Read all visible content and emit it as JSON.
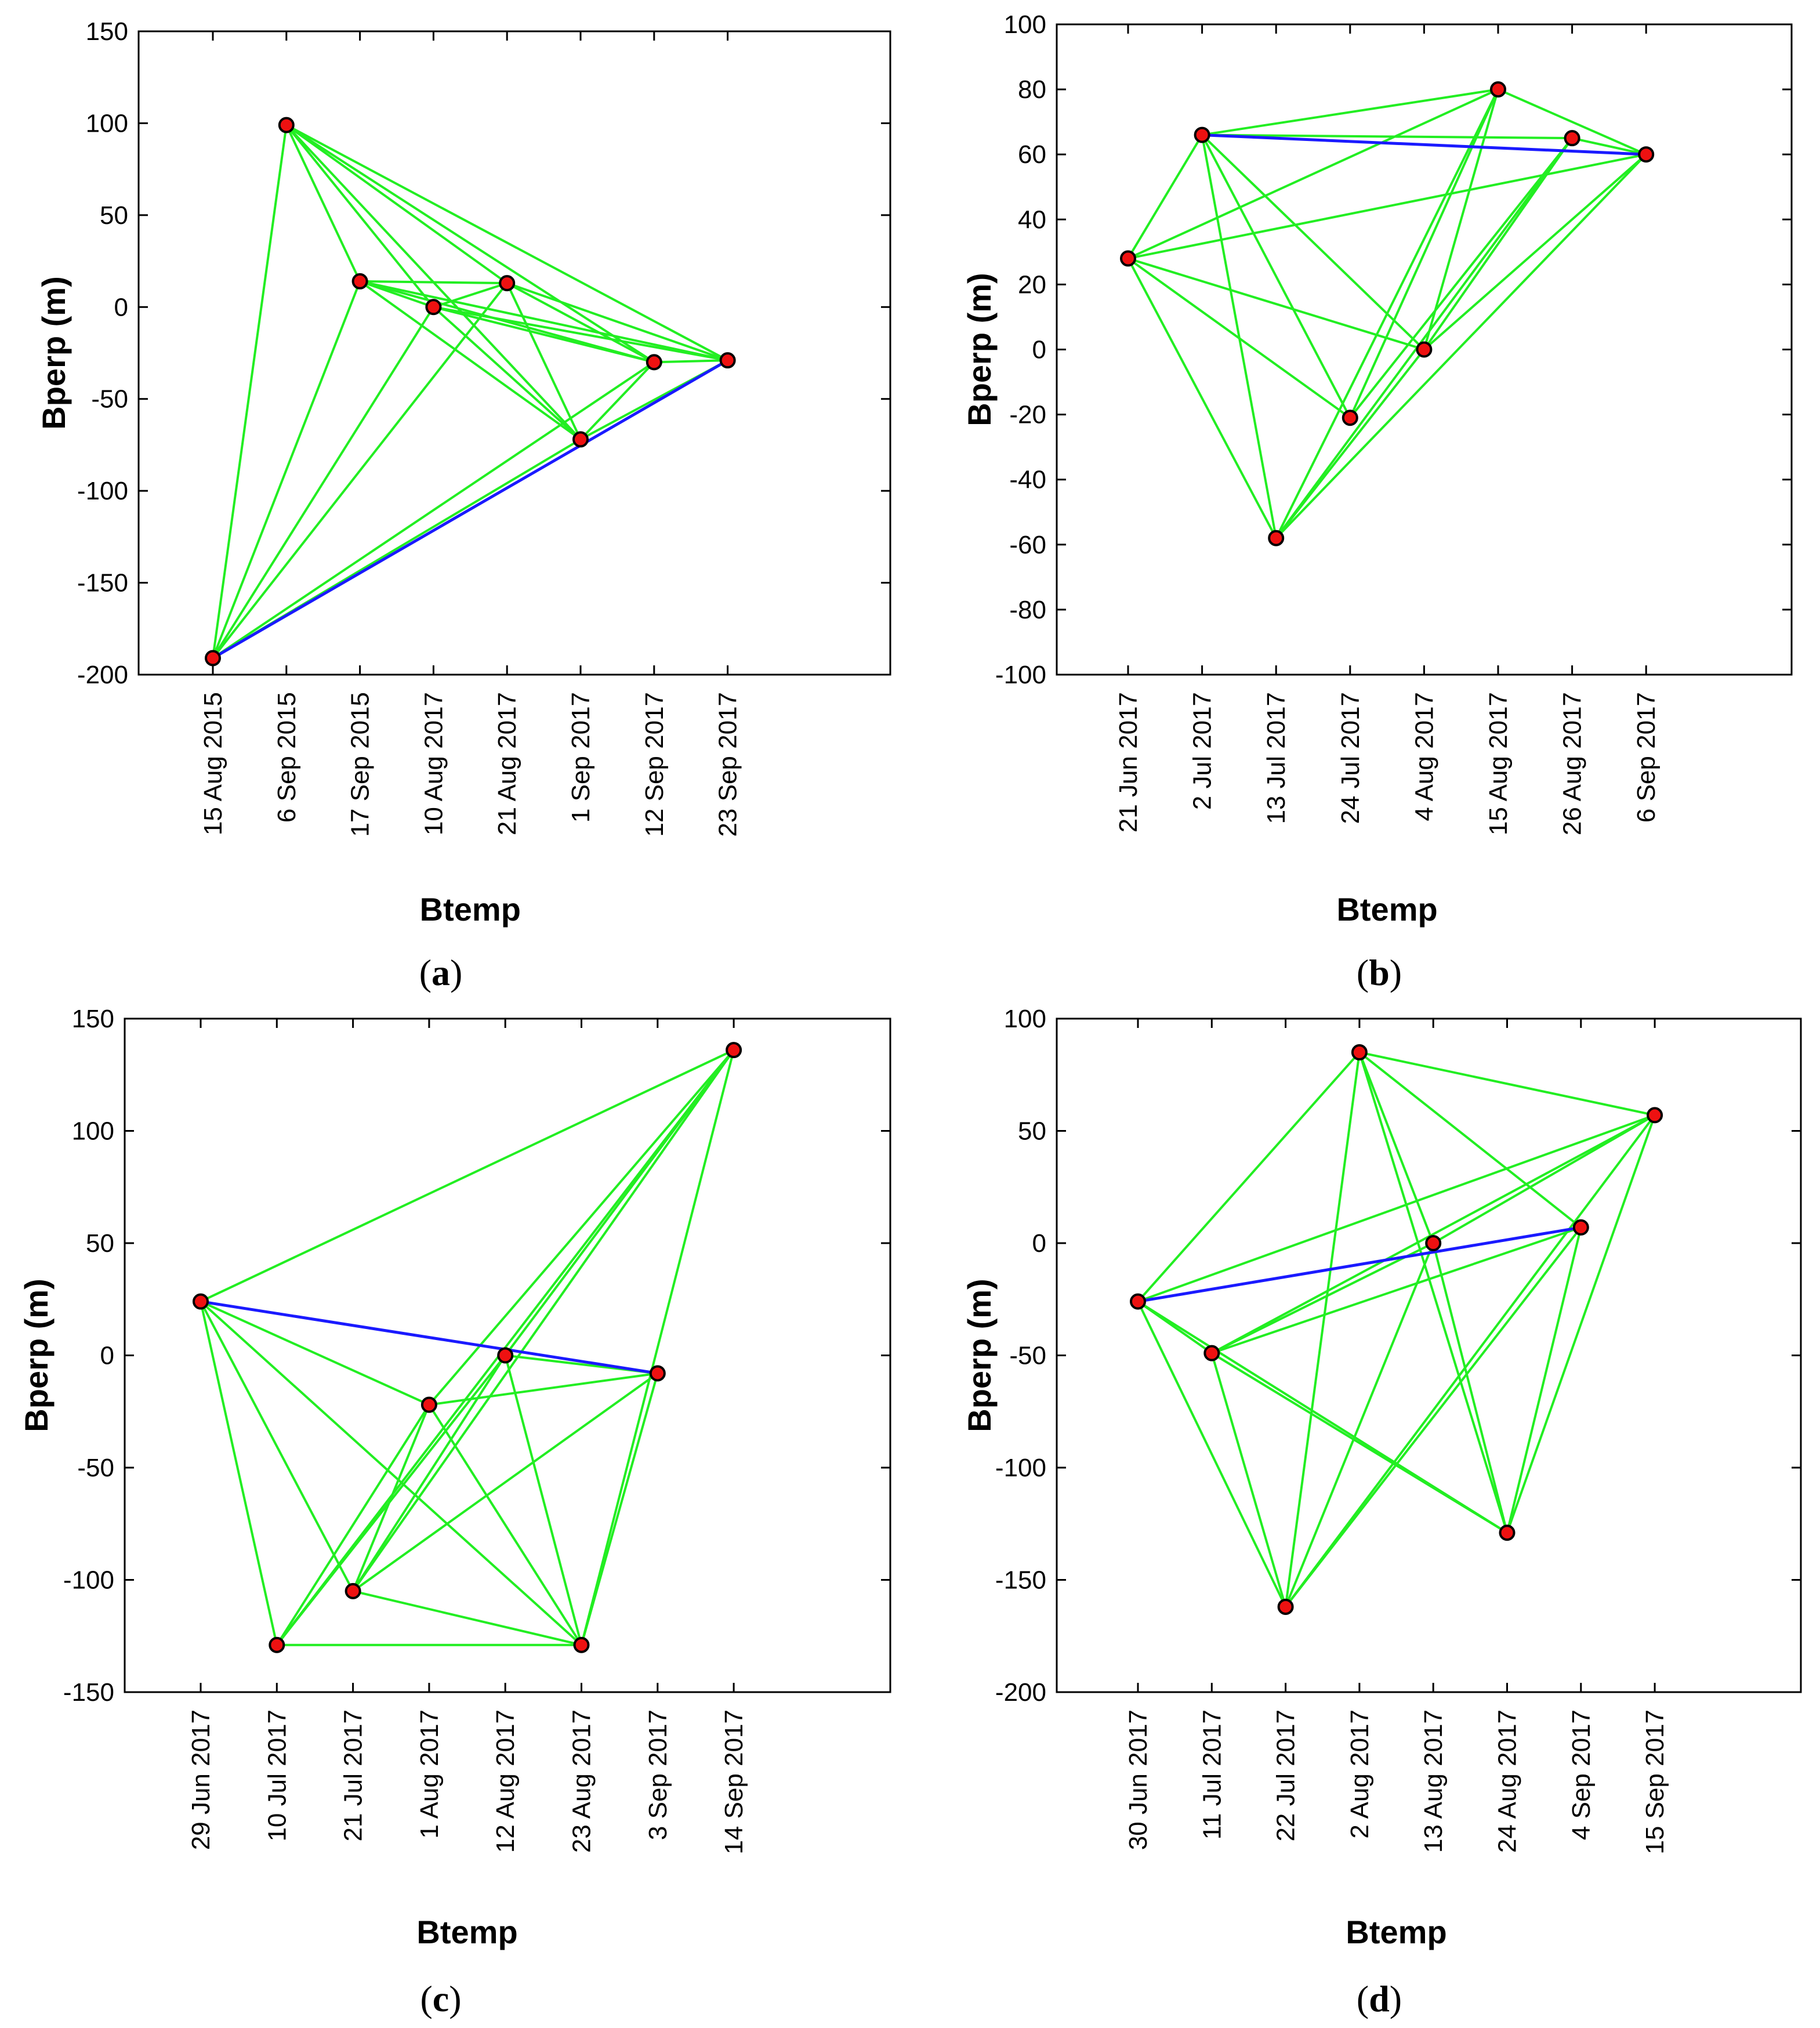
{
  "figure": {
    "panels": [
      {
        "id": "a",
        "label": "(a)",
        "label_letter": "a"
      },
      {
        "id": "b",
        "label": "(b)",
        "label_letter": "b"
      },
      {
        "id": "c",
        "label": "(c)",
        "label_letter": "c"
      },
      {
        "id": "d",
        "label": "(d)",
        "label_letter": "d"
      }
    ],
    "colors": {
      "edge": "#22ee22",
      "master_edge": "#1a1aff",
      "point_fill": "#ee1111",
      "point_stroke": "#000000",
      "axis": "#000000"
    }
  },
  "chart_data": [
    {
      "type": "scatter",
      "title": "",
      "xlabel": "Btemp",
      "ylabel": "Bperp (m)",
      "categories": [
        "15 Aug 2015",
        "6 Sep 2015",
        "17 Sep 2015",
        "10 Aug 2017",
        "21 Aug 2017",
        "1 Sep 2017",
        "12 Sep 2017",
        "23 Sep 2017"
      ],
      "values": [
        -191,
        99,
        14,
        0,
        13,
        -72,
        -30,
        -29
      ],
      "ylim": [
        -200,
        150
      ],
      "yticks": [
        -200,
        -150,
        -100,
        -50,
        0,
        50,
        100,
        150
      ],
      "connections": [
        [
          0,
          1
        ],
        [
          0,
          2
        ],
        [
          0,
          3
        ],
        [
          0,
          4
        ],
        [
          0,
          5
        ],
        [
          0,
          6
        ],
        [
          0,
          7
        ],
        [
          1,
          2
        ],
        [
          1,
          3
        ],
        [
          1,
          4
        ],
        [
          1,
          5
        ],
        [
          1,
          6
        ],
        [
          1,
          7
        ],
        [
          2,
          3
        ],
        [
          2,
          4
        ],
        [
          2,
          5
        ],
        [
          2,
          6
        ],
        [
          2,
          7
        ],
        [
          3,
          4
        ],
        [
          3,
          5
        ],
        [
          3,
          6
        ],
        [
          3,
          7
        ],
        [
          4,
          5
        ],
        [
          4,
          6
        ],
        [
          4,
          7
        ],
        [
          5,
          6
        ],
        [
          5,
          7
        ],
        [
          6,
          7
        ]
      ],
      "master_connections": [
        [
          0,
          7
        ]
      ]
    },
    {
      "type": "scatter",
      "title": "",
      "xlabel": "Btemp",
      "ylabel": "Bperp (m)",
      "categories": [
        "21 Jun 2017",
        "2 Jul 2017",
        "13 Jul 2017",
        "24 Jul 2017",
        "4 Aug 2017",
        "15 Aug 2017",
        "26 Aug 2017",
        "6 Sep 2017"
      ],
      "values": [
        28,
        66,
        -58,
        -21,
        0,
        80,
        65,
        60
      ],
      "ylim": [
        -100,
        100
      ],
      "yticks": [
        -100,
        -80,
        -60,
        -40,
        -20,
        0,
        20,
        40,
        60,
        80,
        100
      ],
      "connections": [
        [
          0,
          1
        ],
        [
          0,
          2
        ],
        [
          0,
          3
        ],
        [
          0,
          4
        ],
        [
          0,
          5
        ],
        [
          0,
          7
        ],
        [
          1,
          2
        ],
        [
          1,
          3
        ],
        [
          1,
          4
        ],
        [
          1,
          5
        ],
        [
          1,
          6
        ],
        [
          2,
          4
        ],
        [
          2,
          5
        ],
        [
          2,
          6
        ],
        [
          2,
          7
        ],
        [
          3,
          5
        ],
        [
          3,
          6
        ],
        [
          4,
          5
        ],
        [
          4,
          6
        ],
        [
          4,
          7
        ],
        [
          5,
          7
        ],
        [
          6,
          7
        ]
      ],
      "master_connections": [
        [
          1,
          7
        ]
      ]
    },
    {
      "type": "scatter",
      "title": "",
      "xlabel": "Btemp",
      "ylabel": "Bperp (m)",
      "categories": [
        "29 Jun 2017",
        "10 Jul 2017",
        "21 Jul 2017",
        "1 Aug 2017",
        "12 Aug 2017",
        "23 Aug 2017",
        "3 Sep 2017",
        "14 Sep 2017"
      ],
      "values": [
        24,
        -129,
        -105,
        -22,
        0,
        -129,
        -8,
        136
      ],
      "ylim": [
        -150,
        150
      ],
      "yticks": [
        -150,
        -100,
        -50,
        0,
        50,
        100,
        150
      ],
      "connections": [
        [
          0,
          1
        ],
        [
          0,
          2
        ],
        [
          0,
          3
        ],
        [
          0,
          5
        ],
        [
          0,
          7
        ],
        [
          1,
          3
        ],
        [
          1,
          4
        ],
        [
          1,
          5
        ],
        [
          1,
          7
        ],
        [
          2,
          3
        ],
        [
          2,
          4
        ],
        [
          2,
          5
        ],
        [
          2,
          6
        ],
        [
          2,
          7
        ],
        [
          3,
          5
        ],
        [
          3,
          6
        ],
        [
          3,
          7
        ],
        [
          4,
          5
        ],
        [
          4,
          6
        ],
        [
          4,
          7
        ],
        [
          5,
          6
        ],
        [
          5,
          7
        ]
      ],
      "master_connections": [
        [
          0,
          6
        ]
      ]
    },
    {
      "type": "scatter",
      "title": "",
      "xlabel": "Btemp",
      "ylabel": "Bperp (m)",
      "categories": [
        "30 Jun 2017",
        "11 Jul 2017",
        "22 Jul 2017",
        "2 Aug 2017",
        "13 Aug 2017",
        "24 Aug 2017",
        "4 Sep 2017",
        "15 Sep 2017"
      ],
      "values": [
        -26,
        -49,
        -162,
        85,
        0,
        -129,
        7,
        57
      ],
      "ylim": [
        -200,
        100
      ],
      "yticks": [
        -200,
        -150,
        -100,
        -50,
        0,
        50,
        100
      ],
      "connections": [
        [
          0,
          1
        ],
        [
          0,
          2
        ],
        [
          0,
          3
        ],
        [
          0,
          5
        ],
        [
          0,
          7
        ],
        [
          1,
          2
        ],
        [
          1,
          4
        ],
        [
          1,
          5
        ],
        [
          1,
          6
        ],
        [
          1,
          7
        ],
        [
          2,
          3
        ],
        [
          2,
          4
        ],
        [
          2,
          6
        ],
        [
          2,
          7
        ],
        [
          3,
          4
        ],
        [
          3,
          5
        ],
        [
          3,
          6
        ],
        [
          3,
          7
        ],
        [
          4,
          5
        ],
        [
          4,
          7
        ],
        [
          5,
          6
        ],
        [
          5,
          7
        ]
      ],
      "master_connections": [
        [
          0,
          6
        ]
      ]
    }
  ]
}
